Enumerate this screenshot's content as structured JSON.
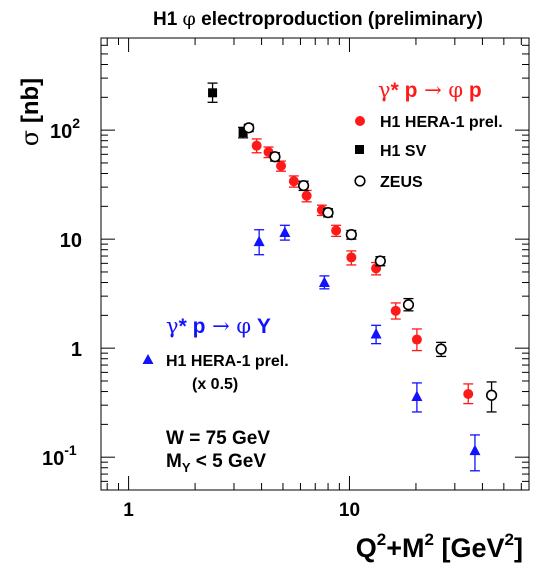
{
  "chart_data": {
    "type": "scatter",
    "title": "H1 φ electroproduction (preliminary)",
    "title_parts": {
      "pre": "H1 ",
      "sym": "φ",
      "post": " electroproduction (preliminary)"
    },
    "xlabel": "Q²+M² [GeV²]",
    "xlabel_parts": {
      "q": "Q",
      "sq1": "2",
      "mid": "+M",
      "sq2": "2",
      "unit": " [GeV",
      "sq3": "2",
      "close": "]"
    },
    "ylabel": "σ [nb]",
    "ylabel_parts": {
      "sym": "σ",
      "unit": " [nb]"
    },
    "xscale": "log",
    "yscale": "log",
    "xlim": [
      0.75,
      65
    ],
    "ylim": [
      0.05,
      700
    ],
    "grid": false,
    "x_ticks": [
      {
        "value": 1,
        "label": "1"
      },
      {
        "value": 10,
        "label": "10"
      }
    ],
    "y_ticks": [
      {
        "value": 0.1,
        "base": "10",
        "exp": "-1"
      },
      {
        "value": 1,
        "base": "1",
        "exp": ""
      },
      {
        "value": 10,
        "base": "10",
        "exp": ""
      },
      {
        "value": 100,
        "base": "10",
        "exp": "2"
      }
    ],
    "series": [
      {
        "name": "H1 HERA-1 prel.",
        "marker": "filled-circle",
        "color": "#ff1a1a",
        "points": [
          {
            "x": 3.8,
            "y": 72,
            "lo": 62,
            "hi": 83
          },
          {
            "x": 4.3,
            "y": 63,
            "lo": 56,
            "hi": 70
          },
          {
            "x": 4.9,
            "y": 47,
            "lo": 42,
            "hi": 52
          },
          {
            "x": 5.6,
            "y": 34,
            "lo": 30,
            "hi": 38
          },
          {
            "x": 6.4,
            "y": 25,
            "lo": 22,
            "hi": 28
          },
          {
            "x": 7.5,
            "y": 18.5,
            "lo": 16.5,
            "hi": 20.5
          },
          {
            "x": 8.7,
            "y": 12,
            "lo": 10.6,
            "hi": 13.4
          },
          {
            "x": 10.2,
            "y": 6.8,
            "lo": 5.8,
            "hi": 7.8
          },
          {
            "x": 13.2,
            "y": 5.4,
            "lo": 4.7,
            "hi": 6.1
          },
          {
            "x": 16.2,
            "y": 2.2,
            "lo": 1.85,
            "hi": 2.6
          },
          {
            "x": 20.2,
            "y": 1.2,
            "lo": 0.95,
            "hi": 1.5
          },
          {
            "x": 34.5,
            "y": 0.38,
            "lo": 0.31,
            "hi": 0.47
          }
        ]
      },
      {
        "name": "H1 SV",
        "marker": "filled-square",
        "color": "#000000",
        "points": [
          {
            "x": 2.4,
            "y": 220,
            "lo": 180,
            "hi": 270
          },
          {
            "x": 3.3,
            "y": 95,
            "lo": 85,
            "hi": 106
          }
        ]
      },
      {
        "name": "ZEUS",
        "marker": "open-circle",
        "color": "#000000",
        "points": [
          {
            "x": 3.5,
            "y": 105,
            "lo": 97,
            "hi": 113
          },
          {
            "x": 4.6,
            "y": 57,
            "lo": 52,
            "hi": 62
          },
          {
            "x": 6.2,
            "y": 31,
            "lo": 28,
            "hi": 34
          },
          {
            "x": 8.0,
            "y": 17.5,
            "lo": 16,
            "hi": 19
          },
          {
            "x": 10.2,
            "y": 11,
            "lo": 10,
            "hi": 12
          },
          {
            "x": 13.8,
            "y": 6.3,
            "lo": 5.7,
            "hi": 6.9
          },
          {
            "x": 18.5,
            "y": 2.5,
            "lo": 2.2,
            "hi": 2.85
          },
          {
            "x": 26.0,
            "y": 0.98,
            "lo": 0.84,
            "hi": 1.13
          },
          {
            "x": 44.0,
            "y": 0.37,
            "lo": 0.26,
            "hi": 0.49
          }
        ]
      },
      {
        "name": "H1 HERA-1 prel.",
        "subtitle": "(x 0.5)",
        "marker": "filled-triangle",
        "color": "#1212ff",
        "points": [
          {
            "x": 3.9,
            "y": 9.5,
            "lo": 7.2,
            "hi": 12.2
          },
          {
            "x": 5.1,
            "y": 11.5,
            "lo": 9.8,
            "hi": 13.4
          },
          {
            "x": 7.7,
            "y": 4.0,
            "lo": 3.5,
            "hi": 4.6
          },
          {
            "x": 13.2,
            "y": 1.35,
            "lo": 1.1,
            "hi": 1.62
          },
          {
            "x": 20.2,
            "y": 0.36,
            "lo": 0.26,
            "hi": 0.48
          },
          {
            "x": 37.0,
            "y": 0.115,
            "lo": 0.075,
            "hi": 0.16
          }
        ]
      }
    ],
    "annotations": {
      "red_process": {
        "gamma": "γ",
        "star": "*",
        "p": " p",
        "arrow": " → ",
        "phi": "φ",
        "out": " p"
      },
      "blue_process": {
        "gamma": "γ",
        "star": "*",
        "p": " p",
        "arrow": " → ",
        "phi": "φ",
        "out": " Y"
      },
      "energy": "W = 75 GeV",
      "mass_cut": {
        "m": "M",
        "sub": "Y",
        "rest": " < 5 GeV"
      }
    },
    "legend_placement": "upper-right (red/black), middle-left (blue)"
  }
}
